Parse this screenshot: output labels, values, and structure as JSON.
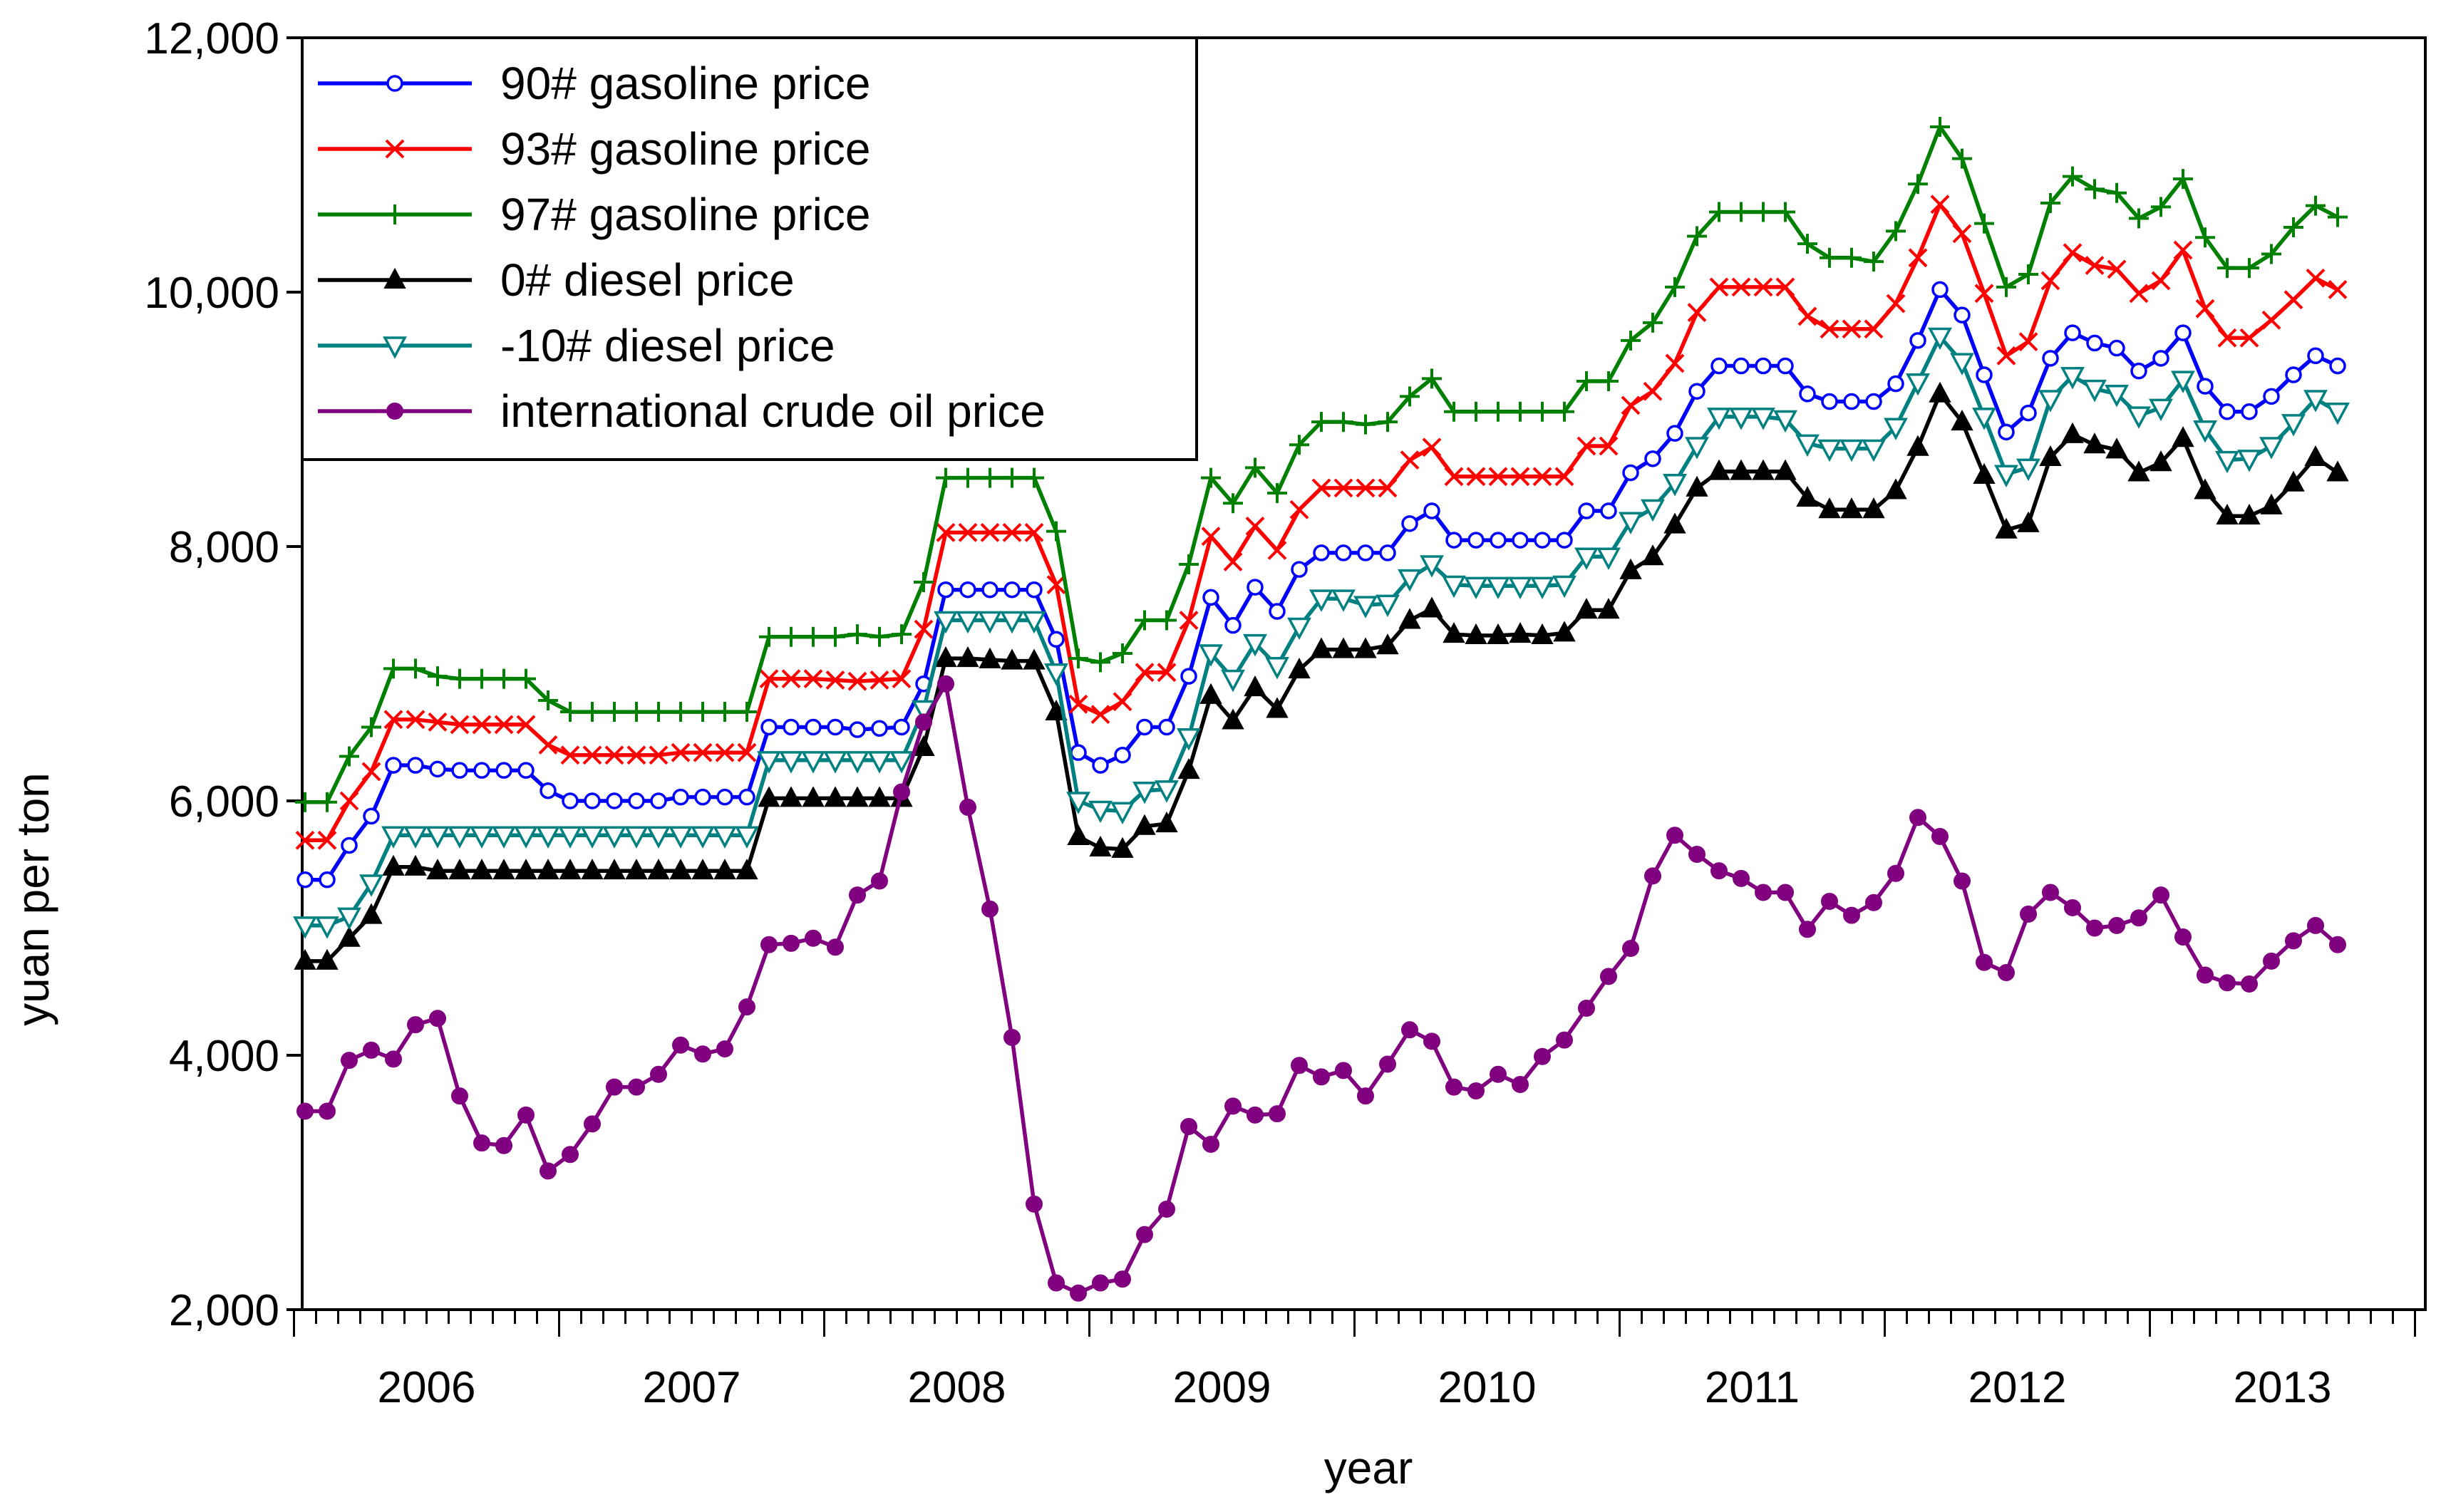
{
  "chart_data": {
    "type": "line",
    "title": "",
    "xlabel": "year",
    "ylabel": "yuan per ton",
    "ylim": [
      2000,
      12000
    ],
    "yticks": [
      2000,
      4000,
      6000,
      8000,
      10000,
      12000
    ],
    "ytick_labels": [
      "2,000",
      "4,000",
      "6,000",
      "8,000",
      "10,000",
      "12,000"
    ],
    "x_start": "2006-01",
    "months_per_year": 12,
    "years": [
      "2006",
      "2007",
      "2008",
      "2009",
      "2010",
      "2011",
      "2012",
      "2013"
    ],
    "legend_position": "top-left",
    "series": [
      {
        "name": "90# gasoline price",
        "color": "#0000ff",
        "marker": "circle-open",
        "values": [
          5380,
          5380,
          5650,
          5880,
          6280,
          6280,
          6250,
          6240,
          6240,
          6240,
          6240,
          6080,
          6000,
          6000,
          6000,
          6000,
          6000,
          6030,
          6030,
          6030,
          6030,
          6580,
          6580,
          6580,
          6580,
          6560,
          6570,
          6580,
          6920,
          7660,
          7660,
          7660,
          7660,
          7660,
          7270,
          6380,
          6280,
          6360,
          6580,
          6580,
          6980,
          7600,
          7380,
          7680,
          7490,
          7820,
          7950,
          7950,
          7950,
          7950,
          8180,
          8280,
          8050,
          8050,
          8050,
          8050,
          8050,
          8050,
          8280,
          8280,
          8580,
          8690,
          8890,
          9220,
          9420,
          9420,
          9420,
          9420,
          9200,
          9140,
          9140,
          9140,
          9280,
          9620,
          10020,
          9820,
          9350,
          8900,
          9050,
          9480,
          9680,
          9600,
          9560,
          9380,
          9480,
          9680,
          9260,
          9060,
          9060,
          9180,
          9350,
          9500,
          9420
        ]
      },
      {
        "name": "93# gasoline price",
        "color": "#ff0000",
        "marker": "x",
        "values": [
          5690,
          5690,
          6000,
          6230,
          6640,
          6640,
          6620,
          6600,
          6600,
          6600,
          6600,
          6440,
          6360,
          6360,
          6360,
          6360,
          6360,
          6380,
          6380,
          6380,
          6380,
          6960,
          6960,
          6960,
          6950,
          6940,
          6950,
          6960,
          7350,
          8110,
          8110,
          8110,
          8110,
          8110,
          7700,
          6760,
          6680,
          6780,
          7010,
          7010,
          7420,
          8080,
          7880,
          8160,
          7970,
          8290,
          8460,
          8460,
          8460,
          8460,
          8680,
          8780,
          8550,
          8550,
          8550,
          8550,
          8550,
          8550,
          8790,
          8790,
          9110,
          9220,
          9440,
          9840,
          10040,
          10040,
          10040,
          10040,
          9810,
          9710,
          9710,
          9710,
          9910,
          10270,
          10690,
          10460,
          9990,
          9500,
          9610,
          10090,
          10310,
          10210,
          10180,
          9990,
          10090,
          10330,
          9870,
          9640,
          9640,
          9780,
          9940,
          10110,
          10020
        ]
      },
      {
        "name": "97# gasoline price",
        "color": "#008000",
        "marker": "plus",
        "values": [
          5990,
          5990,
          6350,
          6580,
          7040,
          7040,
          6980,
          6960,
          6960,
          6960,
          6960,
          6790,
          6700,
          6700,
          6700,
          6700,
          6700,
          6700,
          6700,
          6700,
          6700,
          7290,
          7290,
          7290,
          7290,
          7310,
          7290,
          7310,
          7720,
          8540,
          8540,
          8540,
          8540,
          8540,
          8120,
          7120,
          7090,
          7160,
          7420,
          7420,
          7860,
          8540,
          8340,
          8620,
          8420,
          8800,
          8980,
          8980,
          8960,
          8980,
          9180,
          9320,
          9060,
          9060,
          9060,
          9060,
          9060,
          9060,
          9300,
          9300,
          9620,
          9760,
          10040,
          10440,
          10630,
          10630,
          10630,
          10630,
          10380,
          10270,
          10270,
          10240,
          10480,
          10850,
          11300,
          11050,
          10540,
          10040,
          10140,
          10700,
          10910,
          10810,
          10780,
          10580,
          10670,
          10890,
          10430,
          10190,
          10190,
          10300,
          10510,
          10680,
          10590
        ]
      },
      {
        "name": "0# diesel price",
        "color": "#000000",
        "marker": "triangle-up",
        "values": [
          4740,
          4740,
          4920,
          5100,
          5480,
          5480,
          5450,
          5450,
          5450,
          5450,
          5450,
          5450,
          5450,
          5450,
          5450,
          5450,
          5450,
          5450,
          5450,
          5450,
          5450,
          6020,
          6020,
          6020,
          6020,
          6020,
          6020,
          6020,
          6420,
          7120,
          7120,
          7110,
          7100,
          7100,
          6700,
          5720,
          5630,
          5620,
          5800,
          5820,
          6240,
          6830,
          6630,
          6890,
          6720,
          7030,
          7190,
          7190,
          7190,
          7220,
          7420,
          7510,
          7310,
          7300,
          7300,
          7310,
          7300,
          7320,
          7500,
          7500,
          7810,
          7920,
          8170,
          8460,
          8590,
          8590,
          8590,
          8590,
          8380,
          8290,
          8290,
          8290,
          8440,
          8780,
          9200,
          8980,
          8560,
          8130,
          8180,
          8700,
          8880,
          8800,
          8760,
          8580,
          8660,
          8850,
          8440,
          8240,
          8240,
          8320,
          8500,
          8700,
          8580
        ]
      },
      {
        "name": "-10# diesel price",
        "color": "#008080",
        "marker": "triangle-down-open",
        "values": [
          5020,
          5020,
          5090,
          5350,
          5730,
          5730,
          5730,
          5730,
          5730,
          5730,
          5730,
          5730,
          5730,
          5730,
          5730,
          5730,
          5730,
          5730,
          5730,
          5730,
          5730,
          6320,
          6320,
          6320,
          6320,
          6320,
          6320,
          6320,
          6720,
          7420,
          7420,
          7420,
          7420,
          7420,
          7010,
          6000,
          5930,
          5920,
          6080,
          6090,
          6500,
          7160,
          6960,
          7240,
          7060,
          7370,
          7590,
          7590,
          7540,
          7550,
          7750,
          7860,
          7700,
          7690,
          7690,
          7690,
          7690,
          7700,
          7920,
          7920,
          8200,
          8300,
          8500,
          8790,
          9020,
          9020,
          9020,
          9000,
          8810,
          8770,
          8770,
          8770,
          8940,
          9290,
          9650,
          9450,
          9020,
          8570,
          8620,
          9160,
          9340,
          9240,
          9200,
          9030,
          9090,
          9310,
          8920,
          8680,
          8690,
          8790,
          8970,
          9160,
          9060
        ]
      },
      {
        "name": "international crude oil price",
        "color": "#800080",
        "marker": "circle-filled",
        "values": [
          3560,
          3560,
          3960,
          4040,
          3970,
          4240,
          4290,
          3680,
          3310,
          3290,
          3530,
          3090,
          3220,
          3460,
          3750,
          3750,
          3850,
          4080,
          4010,
          4050,
          4380,
          4870,
          4880,
          4920,
          4850,
          5260,
          5370,
          6070,
          6620,
          6920,
          5950,
          5150,
          4140,
          2830,
          2210,
          2130,
          2210,
          2240,
          2590,
          2790,
          3440,
          3300,
          3600,
          3530,
          3540,
          3920,
          3830,
          3880,
          3680,
          3930,
          4200,
          4110,
          3750,
          3720,
          3850,
          3770,
          3990,
          4120,
          4370,
          4620,
          4840,
          5410,
          5730,
          5580,
          5450,
          5390,
          5280,
          5280,
          4990,
          5210,
          5100,
          5200,
          5430,
          5870,
          5720,
          5370,
          4730,
          4650,
          5110,
          5280,
          5160,
          5000,
          5020,
          5080,
          5260,
          4930,
          4630,
          4570,
          4560,
          4740,
          4900,
          5020,
          4870
        ]
      }
    ]
  }
}
